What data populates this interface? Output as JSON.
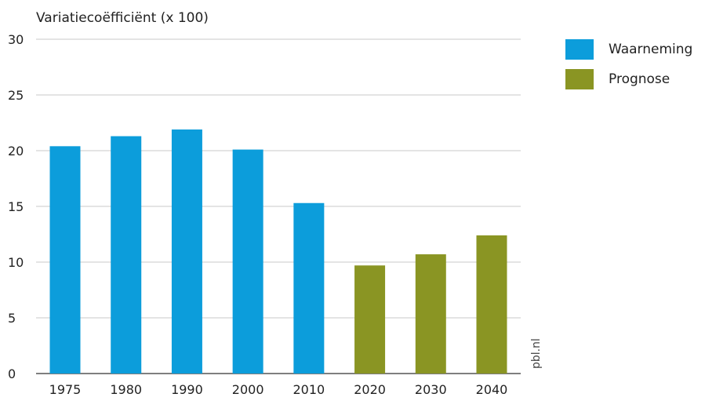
{
  "chart_data": {
    "type": "bar",
    "ylabel": "Variatiecoëfficiënt (x 100)",
    "xlabel": "",
    "ylim": [
      0,
      30
    ],
    "yticks": [
      0,
      5,
      10,
      15,
      20,
      25,
      30
    ],
    "grid": true,
    "legend_position": "right",
    "categories": [
      "1975",
      "1980",
      "1990",
      "2000",
      "2010",
      "2020",
      "2030",
      "2040"
    ],
    "series": [
      {
        "name": "Waarneming",
        "color": "#0c9ddb",
        "values": [
          20.4,
          21.3,
          21.9,
          20.1,
          15.3,
          null,
          null,
          null
        ]
      },
      {
        "name": "Prognose",
        "color": "#8a9523",
        "values": [
          null,
          null,
          null,
          null,
          null,
          9.7,
          10.7,
          12.4
        ]
      }
    ],
    "source": "pbl.nl"
  }
}
